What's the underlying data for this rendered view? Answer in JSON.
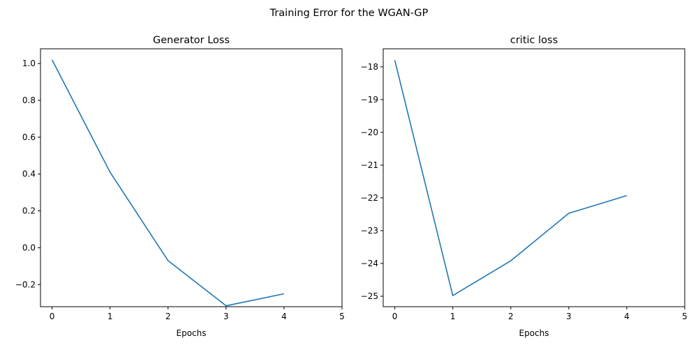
{
  "figure": {
    "suptitle": "Training Error for the WGAN-GP"
  },
  "colors": {
    "line": "#1f77b4",
    "axes": "#000000",
    "background": "#ffffff"
  },
  "chart_data": [
    {
      "type": "line",
      "title": "Generator Loss",
      "xlabel": "Epochs",
      "ylabel": "",
      "xlim": [
        -0.2,
        5.0
      ],
      "ylim": [
        -0.32,
        1.08
      ],
      "xticks": [
        0,
        1,
        2,
        3,
        4,
        5
      ],
      "xtick_labels": [
        "0",
        "1",
        "2",
        "3",
        "4",
        "5"
      ],
      "yticks": [
        -0.2,
        0.0,
        0.2,
        0.4,
        0.6,
        0.8,
        1.0
      ],
      "ytick_labels": [
        "−0.2",
        "0.0",
        "0.2",
        "0.4",
        "0.6",
        "0.8",
        "1.0"
      ],
      "grid": false,
      "series": [
        {
          "x": [
            0,
            1,
            2,
            3,
            4
          ],
          "values": [
            1.02,
            0.41,
            -0.07,
            -0.315,
            -0.25
          ]
        }
      ]
    },
    {
      "type": "line",
      "title": "critic loss",
      "xlabel": "Epochs",
      "ylabel": "",
      "xlim": [
        -0.2,
        5.0
      ],
      "ylim": [
        -25.32,
        -17.45
      ],
      "xticks": [
        0,
        1,
        2,
        3,
        4,
        5
      ],
      "xtick_labels": [
        "0",
        "1",
        "2",
        "3",
        "4",
        "5"
      ],
      "yticks": [
        -25,
        -24,
        -23,
        -22,
        -21,
        -20,
        -19,
        -18
      ],
      "ytick_labels": [
        "−25",
        "−24",
        "−23",
        "−22",
        "−21",
        "−20",
        "−19",
        "−18"
      ],
      "grid": false,
      "series": [
        {
          "x": [
            0,
            1,
            2,
            3,
            4
          ],
          "values": [
            -17.8,
            -24.98,
            -23.92,
            -22.47,
            -21.93
          ]
        }
      ]
    }
  ]
}
